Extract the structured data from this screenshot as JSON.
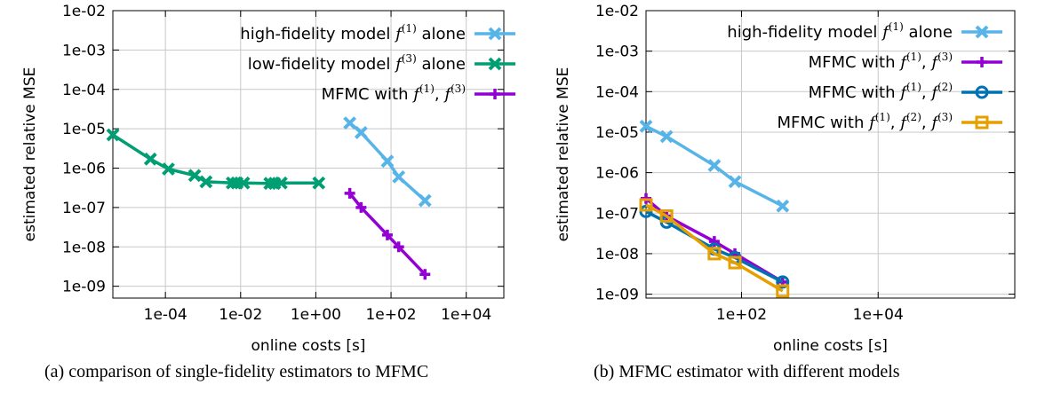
{
  "captions": {
    "a": "(a) comparison of single-fidelity estimators to MFMC",
    "b": "(b) MFMC estimator with different models"
  },
  "chart_data": [
    {
      "type": "line",
      "id": "a",
      "xlabel": "online costs [s]",
      "ylabel": "estimated relative MSE",
      "x_scale": "log",
      "y_scale": "log",
      "xlim": [
        4e-06,
        100000
      ],
      "ylim": [
        5e-10,
        0.01
      ],
      "x_ticks": [
        {
          "v": 0.0001,
          "label": "1e-04"
        },
        {
          "v": 0.01,
          "label": "1e-02"
        },
        {
          "v": 1,
          "label": "1e+00"
        },
        {
          "v": 100,
          "label": "1e+02"
        },
        {
          "v": 10000,
          "label": "1e+04"
        }
      ],
      "y_ticks": [
        {
          "v": 0.01,
          "label": "1e-02"
        },
        {
          "v": 0.001,
          "label": "1e-03"
        },
        {
          "v": 0.0001,
          "label": "1e-04"
        },
        {
          "v": 1e-05,
          "label": "1e-05"
        },
        {
          "v": 1e-06,
          "label": "1e-06"
        },
        {
          "v": 1e-07,
          "label": "1e-07"
        },
        {
          "v": 1e-08,
          "label": "1e-08"
        },
        {
          "v": 1e-09,
          "label": "1e-09"
        }
      ],
      "grid": true,
      "legend_position": "top-right",
      "series": [
        {
          "legend": [
            "high-fidelity model ",
            "f",
            "(1)",
            " alone"
          ],
          "color": "#56b4e9",
          "marker": "x",
          "x": [
            8,
            16,
            80,
            160,
            800
          ],
          "y": [
            1.4e-05,
            8e-06,
            1.5e-06,
            6e-07,
            1.5e-07
          ]
        },
        {
          "legend": [
            "low-fidelity model ",
            "f",
            "(3)",
            " alone"
          ],
          "color": "#009e73",
          "marker": "x",
          "x": [
            4e-06,
            4e-05,
            0.00012,
            0.0006,
            0.0012,
            0.006,
            0.008,
            0.012,
            0.06,
            0.08,
            0.12,
            1.2
          ],
          "y": [
            7e-06,
            1.7e-06,
            9.5e-07,
            6.5e-07,
            4.5e-07,
            4.2e-07,
            4.2e-07,
            4.2e-07,
            4.1e-07,
            4.1e-07,
            4.2e-07,
            4.2e-07
          ]
        },
        {
          "legend": [
            "MFMC with ",
            "f",
            "(1)",
            ", ",
            "f",
            "(3)",
            ""
          ],
          "color": "#9400d3",
          "marker": "plus",
          "x": [
            8,
            16,
            80,
            160,
            800
          ],
          "y": [
            2.3e-07,
            1e-07,
            2e-08,
            1e-08,
            2e-09
          ]
        }
      ]
    },
    {
      "type": "line",
      "id": "b",
      "xlabel": "online costs [s]",
      "ylabel": "estimated relative MSE",
      "x_scale": "log",
      "y_scale": "log",
      "xlim": [
        4,
        1000000
      ],
      "ylim": [
        8e-10,
        0.01
      ],
      "x_ticks": [
        {
          "v": 100,
          "label": "1e+02"
        },
        {
          "v": 10000,
          "label": "1e+04"
        }
      ],
      "y_ticks": [
        {
          "v": 0.01,
          "label": "1e-02"
        },
        {
          "v": 0.001,
          "label": "1e-03"
        },
        {
          "v": 0.0001,
          "label": "1e-04"
        },
        {
          "v": 1e-05,
          "label": "1e-05"
        },
        {
          "v": 1e-06,
          "label": "1e-06"
        },
        {
          "v": 1e-07,
          "label": "1e-07"
        },
        {
          "v": 1e-08,
          "label": "1e-08"
        },
        {
          "v": 1e-09,
          "label": "1e-09"
        }
      ],
      "grid": true,
      "legend_position": "top-right",
      "series": [
        {
          "legend": [
            "high-fidelity model ",
            "f",
            "(1)",
            " alone"
          ],
          "color": "#56b4e9",
          "marker": "x",
          "x": [
            4,
            8,
            40,
            80,
            400
          ],
          "y": [
            1.4e-05,
            7.8e-06,
            1.5e-06,
            6e-07,
            1.5e-07
          ]
        },
        {
          "legend": [
            "MFMC with ",
            "f",
            "(1)",
            ", ",
            "f",
            "(3)",
            ""
          ],
          "color": "#9400d3",
          "marker": "plus",
          "x": [
            4,
            8,
            40,
            80,
            400
          ],
          "y": [
            2.3e-07,
            8.5e-08,
            2e-08,
            1e-08,
            2e-09
          ]
        },
        {
          "legend": [
            "MFMC with ",
            "f",
            "(1)",
            ", ",
            "f",
            "(2)",
            ""
          ],
          "color": "#0072b2",
          "marker": "circle",
          "x": [
            4,
            8,
            40,
            80,
            400
          ],
          "y": [
            1.1e-07,
            6e-08,
            1.3e-08,
            8e-09,
            2e-09
          ]
        },
        {
          "legend": [
            "MFMC with ",
            "f",
            "(1)",
            ", ",
            "f",
            "(2)",
            ", ",
            "f",
            "(3)",
            ""
          ],
          "color": "#e69f00",
          "marker": "square",
          "x": [
            4,
            8,
            40,
            80,
            400
          ],
          "y": [
            1.6e-07,
            8.5e-08,
            1e-08,
            6e-09,
            1.2e-09
          ]
        }
      ]
    }
  ]
}
